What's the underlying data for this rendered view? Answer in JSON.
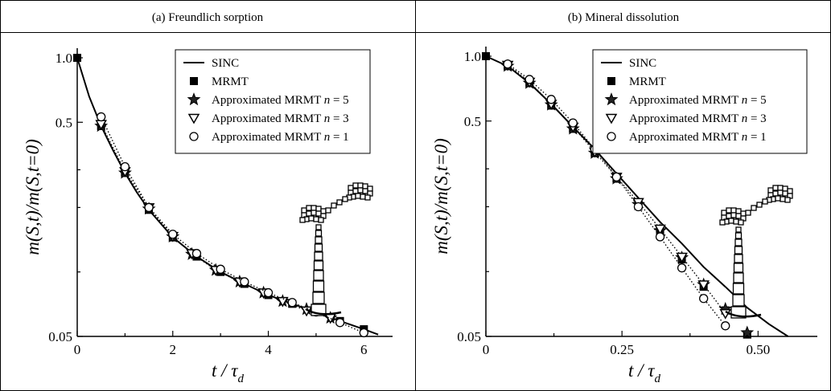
{
  "panels": [
    {
      "header": "(a) Freundlich sorption",
      "ylabel": "m(S,t)/m(S,t=0)",
      "xlabel_main": "t / τ",
      "xlabel_sub": "d",
      "chart_data": {
        "type": "line",
        "title": "(a) Freundlich sorption",
        "xlabel": "t / τd",
        "ylabel": "m(S,t)/m(S,t=0)",
        "yscale": "log",
        "xlim": [
          0,
          6.5
        ],
        "ylim": [
          0.05,
          1.0
        ],
        "xticks": [
          "0",
          "2",
          "4",
          "6"
        ],
        "yticks": [
          "0.05",
          "0.5",
          "1.0"
        ],
        "legend": "top-right",
        "series": [
          {
            "name": "SINC",
            "style": "solid line",
            "x": [
              0,
              0.25,
              0.5,
              0.75,
              1.0,
              1.25,
              1.5,
              2.0,
              2.5,
              3.0,
              3.5,
              4.0,
              4.5,
              5.0,
              5.5,
              6.0,
              6.3
            ],
            "y": [
              1.0,
              0.66,
              0.48,
              0.37,
              0.29,
              0.235,
              0.195,
              0.145,
              0.118,
              0.1,
              0.088,
              0.078,
              0.071,
              0.065,
              0.059,
              0.054,
              0.051
            ]
          },
          {
            "name": "MRMT",
            "style": "filled square",
            "x": [
              0,
              0.5,
              1.0,
              1.5,
              2.0,
              2.5,
              3.0,
              3.5,
              4.0,
              4.5,
              5.0,
              5.5,
              6.0
            ],
            "y": [
              1.0,
              0.48,
              0.29,
              0.195,
              0.145,
              0.118,
              0.1,
              0.088,
              0.078,
              0.071,
              0.065,
              0.059,
              0.054
            ]
          },
          {
            "name": "Approximated MRMT n = 5",
            "style": "star",
            "x": [
              0.5,
              1.0,
              1.5,
              2.0,
              2.4,
              2.9,
              3.4,
              3.9,
              4.3,
              4.8,
              5.3
            ],
            "y": [
              0.48,
              0.29,
              0.197,
              0.146,
              0.121,
              0.102,
              0.09,
              0.08,
              0.073,
              0.067,
              0.061
            ]
          },
          {
            "name": "Approximated MRMT n = 3",
            "style": "open triangle, dotted",
            "x": [
              0.5,
              1.0,
              1.5,
              2.0,
              2.4,
              2.9,
              3.4,
              3.9,
              4.3,
              4.8,
              5.3
            ],
            "y": [
              0.49,
              0.295,
              0.2,
              0.147,
              0.122,
              0.102,
              0.09,
              0.08,
              0.073,
              0.066,
              0.061
            ]
          },
          {
            "name": "Approximated MRMT n = 1",
            "style": "open circle, dotted",
            "x": [
              0.5,
              1.0,
              1.5,
              2.0,
              2.5,
              3.0,
              3.5,
              4.0,
              4.5,
              5.0,
              5.5,
              6.0
            ],
            "y": [
              0.53,
              0.31,
              0.2,
              0.15,
              0.122,
              0.103,
              0.09,
              0.08,
              0.072,
              0.065,
              0.058,
              0.052
            ]
          }
        ]
      }
    },
    {
      "header": "(b) Mineral dissolution",
      "ylabel": "m(S,t)/m(S,t=0)",
      "xlabel_main": "t / τ",
      "xlabel_sub": "d",
      "chart_data": {
        "type": "line",
        "title": "(b) Mineral dissolution",
        "xlabel": "t / τd",
        "ylabel": "m(S,t)/m(S,t=0)",
        "yscale": "log",
        "xlim": [
          0,
          0.6
        ],
        "ylim": [
          0.05,
          1.0
        ],
        "xticks": [
          "0",
          "0.25",
          "0.50"
        ],
        "yticks": [
          "0.05",
          "0.5",
          "1.0"
        ],
        "legend": "top-right",
        "series": [
          {
            "name": "SINC",
            "style": "solid line",
            "x": [
              0,
              0.04,
              0.08,
              0.12,
              0.16,
              0.2,
              0.24,
              0.28,
              0.32,
              0.36,
              0.4,
              0.44,
              0.48,
              0.52,
              0.555
            ],
            "y": [
              1.0,
              0.9,
              0.75,
              0.6,
              0.47,
              0.37,
              0.285,
              0.22,
              0.17,
              0.135,
              0.105,
              0.085,
              0.068,
              0.057,
              0.05
            ]
          },
          {
            "name": "MRMT",
            "style": "filled square",
            "x": [
              0,
              0.04,
              0.08,
              0.12,
              0.16,
              0.2,
              0.24,
              0.28,
              0.32,
              0.36,
              0.4,
              0.44,
              0.48
            ],
            "y": [
              1.0,
              0.9,
              0.75,
              0.59,
              0.46,
              0.355,
              0.27,
              0.205,
              0.153,
              0.114,
              0.085,
              0.066,
              0.051
            ]
          },
          {
            "name": "Approximated MRMT n = 5",
            "style": "star",
            "x": [
              0.04,
              0.08,
              0.12,
              0.16,
              0.2,
              0.24,
              0.28,
              0.32,
              0.36,
              0.4,
              0.44,
              0.48
            ],
            "y": [
              0.9,
              0.75,
              0.595,
              0.46,
              0.355,
              0.27,
              0.205,
              0.155,
              0.116,
              0.087,
              0.067,
              0.052
            ]
          },
          {
            "name": "Approximated MRMT n = 3",
            "style": "open triangle, dotted",
            "x": [
              0.04,
              0.08,
              0.12,
              0.16,
              0.2,
              0.24,
              0.28,
              0.32,
              0.36,
              0.4,
              0.44
            ],
            "y": [
              0.91,
              0.76,
              0.6,
              0.47,
              0.36,
              0.275,
              0.21,
              0.158,
              0.117,
              0.087,
              0.064
            ]
          },
          {
            "name": "Approximated MRMT n = 1",
            "style": "open circle, dotted",
            "x": [
              0.04,
              0.08,
              0.12,
              0.16,
              0.2,
              0.24,
              0.28,
              0.32,
              0.36,
              0.4,
              0.44
            ],
            "y": [
              0.92,
              0.78,
              0.63,
              0.49,
              0.37,
              0.275,
              0.2,
              0.145,
              0.104,
              0.075,
              0.056
            ]
          }
        ]
      }
    }
  ],
  "legend_symbols": [
    "line",
    "square",
    "star",
    "triangle",
    "circle"
  ],
  "inset_icon": "pore-network-icon"
}
